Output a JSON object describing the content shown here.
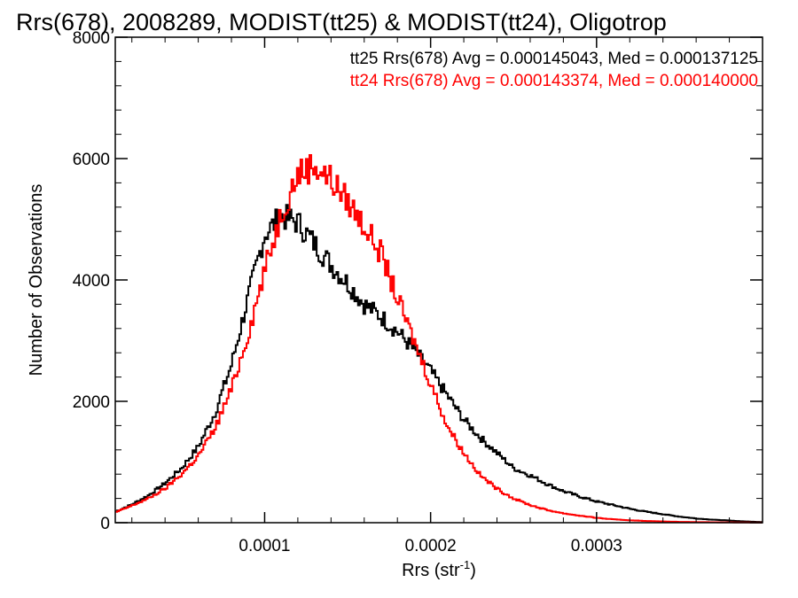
{
  "chart_data": {
    "type": "histogram",
    "title": "Rrs(678), 2008289, MODIST(tt25) & MODIST(tt24), Oligotrop",
    "xlabel": "Rrs (str",
    "xlabel_sup": "-1",
    "xlabel_close": ")",
    "ylabel": "Number of Observations",
    "xlim": [
      1e-05,
      0.0004
    ],
    "ylim": [
      0,
      8000
    ],
    "x_ticks": [
      0.0001,
      0.0002,
      0.0003
    ],
    "x_tick_labels": [
      "0.0001",
      "0.0002",
      "0.0003"
    ],
    "y_ticks": [
      0,
      2000,
      4000,
      6000,
      8000
    ],
    "y_tick_labels": [
      "0",
      "2000",
      "4000",
      "6000",
      "8000"
    ],
    "grid": false,
    "series": [
      {
        "name": "tt25",
        "color": "#000000",
        "annotation": "tt25 Rrs(678) Avg = 0.000145043, Med = 0.000137125",
        "x": [
          1e-05,
          2e-05,
          3e-05,
          4e-05,
          5e-05,
          6e-05,
          7e-05,
          8e-05,
          9e-05,
          0.0001,
          0.00011,
          0.00012,
          0.00013,
          0.00014,
          0.00015,
          0.00016,
          0.00017,
          0.00018,
          0.00019,
          0.0002,
          0.00021,
          0.00022,
          0.00023,
          0.00024,
          0.00025,
          0.00026,
          0.00027,
          0.00028,
          0.00029,
          0.0003,
          0.00031,
          0.00032,
          0.00033,
          0.00034,
          0.00035,
          0.00036,
          0.00037,
          0.00038,
          0.00039,
          0.0004
        ],
        "y": [
          180,
          300,
          450,
          650,
          900,
          1250,
          1800,
          2600,
          3700,
          4750,
          5050,
          4950,
          4600,
          4250,
          3950,
          3600,
          3400,
          3150,
          2850,
          2500,
          2100,
          1700,
          1400,
          1150,
          900,
          780,
          640,
          520,
          430,
          350,
          290,
          230,
          180,
          140,
          100,
          70,
          50,
          35,
          20,
          10
        ]
      },
      {
        "name": "tt24",
        "color": "#ff0000",
        "annotation": "tt24 Rrs(678) Avg = 0.000143374, Med = 0.000140000",
        "x": [
          1e-05,
          2e-05,
          3e-05,
          4e-05,
          5e-05,
          6e-05,
          7e-05,
          8e-05,
          9e-05,
          0.0001,
          0.00011,
          0.00012,
          0.00013,
          0.00014,
          0.00015,
          0.00016,
          0.00017,
          0.00018,
          0.00019,
          0.0002,
          0.00021,
          0.00022,
          0.00023,
          0.00024,
          0.00025,
          0.00026,
          0.00027,
          0.00028,
          0.00029,
          0.0003,
          0.00031,
          0.00032,
          0.00033,
          0.00034,
          0.00035,
          0.00036,
          0.00037,
          0.00038,
          0.00039,
          0.0004
        ],
        "y": [
          170,
          280,
          400,
          560,
          800,
          1100,
          1550,
          2200,
          3100,
          4150,
          5100,
          5750,
          5900,
          5650,
          5300,
          4900,
          4450,
          3700,
          3000,
          2300,
          1600,
          1150,
          780,
          560,
          400,
          290,
          210,
          155,
          115,
          80,
          55,
          40,
          28,
          20,
          14,
          10,
          7,
          5,
          3,
          2
        ]
      }
    ]
  }
}
